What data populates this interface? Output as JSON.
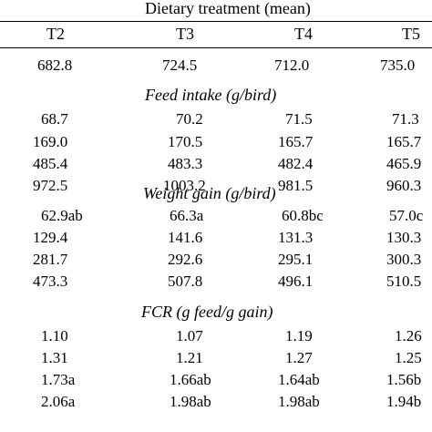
{
  "table": {
    "group_header": "Dietary treatment (mean)",
    "columns": [
      "T2",
      "T3",
      "T4",
      "T5"
    ],
    "initial_weight": [
      "682.8",
      "724.5",
      "712.0",
      "735.0"
    ],
    "sections": [
      {
        "title": "Feed intake (g/bird)",
        "rows": [
          [
            "68.7",
            "70.2",
            "71.5",
            "71.3"
          ],
          [
            "169.0",
            "170.5",
            "165.7",
            "165.7"
          ],
          [
            "485.4",
            "483.3",
            "482.4",
            "465.9"
          ],
          [
            "972.5",
            "1003.2",
            "981.5",
            "960.3"
          ]
        ]
      },
      {
        "title": "Weight gain (g/bird)",
        "rows": [
          [
            "62.9ab",
            "66.3a",
            "60.8bc",
            "57.0c"
          ],
          [
            "129.4",
            "141.6",
            "131.3",
            "130.3"
          ],
          [
            "281.7",
            "292.6",
            "295.1",
            "300.3"
          ],
          [
            "473.3",
            "507.8",
            "496.1",
            "510.5"
          ]
        ]
      },
      {
        "title": "FCR (g feed/g gain)",
        "rows": [
          [
            "1.10",
            "1.07",
            "1.19",
            "1.26"
          ],
          [
            "1.31",
            "1.21",
            "1.27",
            "1.25"
          ],
          [
            "1.73a",
            "1.66ab",
            "1.64ab",
            "1.56b"
          ],
          [
            "2.06a",
            "1.98ab",
            "1.98ab",
            "1.94b"
          ]
        ]
      }
    ]
  }
}
